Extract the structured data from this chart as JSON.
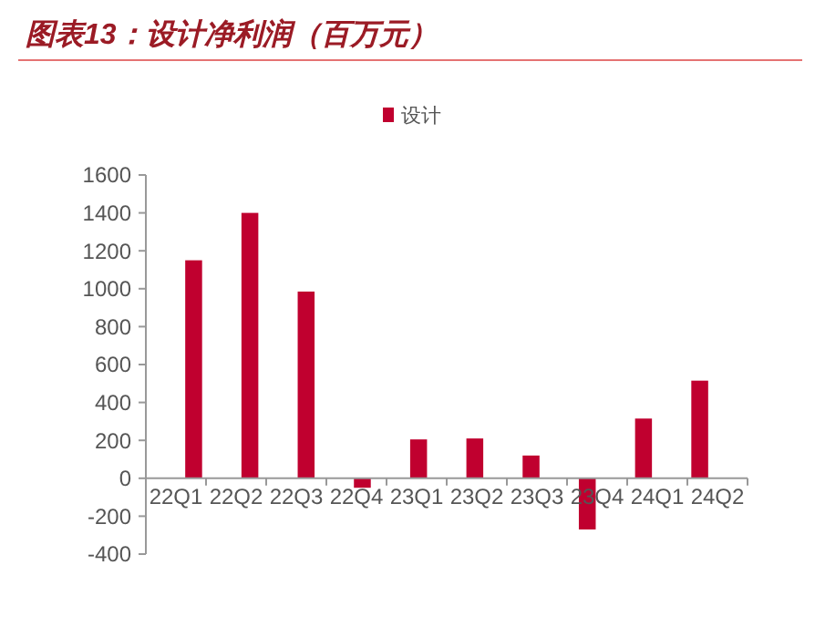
{
  "chart_data": {
    "type": "bar",
    "title": "图表13：设计净利润（百万元）",
    "categories": [
      "22Q1",
      "22Q2",
      "22Q3",
      "22Q4",
      "23Q1",
      "23Q2",
      "23Q3",
      "23Q4",
      "24Q1",
      "24Q2"
    ],
    "series": [
      {
        "name": "设计",
        "color": "#c0002f",
        "values": [
          1150,
          1400,
          985,
          -50,
          205,
          210,
          120,
          -270,
          315,
          515
        ]
      }
    ],
    "ylim": [
      -400,
      1600
    ],
    "yticks": [
      -400,
      -200,
      0,
      200,
      400,
      600,
      800,
      1000,
      1200,
      1400,
      1600
    ],
    "grid": false,
    "legend": "top"
  }
}
